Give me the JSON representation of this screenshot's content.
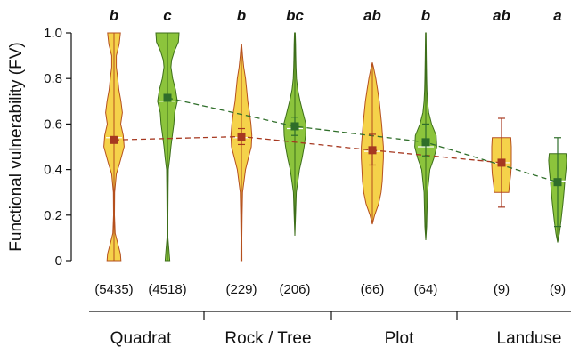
{
  "chart_data": {
    "type": "violin",
    "ylabel": "Functional vulnerability (FV)",
    "ylim": [
      0,
      1
    ],
    "yticks": [
      "0",
      "0.2",
      "0.4",
      "0.6",
      "0.8",
      "1.0"
    ],
    "colors": {
      "yellow_fill": "#f5d24a",
      "yellow_stroke": "#b5501e",
      "green_fill": "#8cc43c",
      "green_stroke": "#3d6e1a",
      "red_marker": "#a63820",
      "green_marker": "#2f6e2a"
    },
    "groups": [
      {
        "label": "Quadrat"
      },
      {
        "label": "Rock / Tree"
      },
      {
        "label": "Plot"
      },
      {
        "label": "Landuse"
      }
    ],
    "violins": [
      {
        "group": 0,
        "color": "yellow",
        "letter": "b",
        "n": "(5435)",
        "mean": 0.53,
        "ci": [
          0.52,
          0.54
        ],
        "min": 0.0,
        "max": 1.0,
        "median": 0.54,
        "profile": [
          [
            0.0,
            0.6
          ],
          [
            0.03,
            0.55
          ],
          [
            0.07,
            0.35
          ],
          [
            0.12,
            0.1
          ],
          [
            0.2,
            0.04
          ],
          [
            0.3,
            0.05
          ],
          [
            0.38,
            0.2
          ],
          [
            0.43,
            0.5
          ],
          [
            0.5,
            0.88
          ],
          [
            0.55,
            0.8
          ],
          [
            0.6,
            0.58
          ],
          [
            0.65,
            0.72
          ],
          [
            0.7,
            0.6
          ],
          [
            0.75,
            0.42
          ],
          [
            0.8,
            0.32
          ],
          [
            0.85,
            0.2
          ],
          [
            0.9,
            0.2
          ],
          [
            0.95,
            0.45
          ],
          [
            1.0,
            0.55
          ]
        ]
      },
      {
        "group": 0,
        "color": "green",
        "letter": "c",
        "n": "(4518)",
        "mean": 0.715,
        "ci": [
          0.705,
          0.725
        ],
        "min": 0.0,
        "max": 1.0,
        "median": 0.7,
        "profile": [
          [
            0.0,
            0.2
          ],
          [
            0.05,
            0.12
          ],
          [
            0.1,
            0.04
          ],
          [
            0.2,
            0.04
          ],
          [
            0.3,
            0.05
          ],
          [
            0.4,
            0.08
          ],
          [
            0.45,
            0.2
          ],
          [
            0.5,
            0.3
          ],
          [
            0.55,
            0.42
          ],
          [
            0.6,
            0.55
          ],
          [
            0.65,
            0.62
          ],
          [
            0.7,
            0.85
          ],
          [
            0.75,
            0.7
          ],
          [
            0.8,
            0.45
          ],
          [
            0.85,
            0.3
          ],
          [
            0.88,
            0.35
          ],
          [
            0.92,
            0.6
          ],
          [
            0.96,
            0.95
          ],
          [
            1.0,
            1.0
          ]
        ]
      },
      {
        "group": 1,
        "color": "yellow",
        "letter": "b",
        "n": "(229)",
        "mean": 0.545,
        "ci": [
          0.51,
          0.58
        ],
        "min": 0.0,
        "max": 0.95,
        "median": 0.54,
        "profile": [
          [
            0.0,
            0.05
          ],
          [
            0.1,
            0.04
          ],
          [
            0.2,
            0.06
          ],
          [
            0.3,
            0.1
          ],
          [
            0.4,
            0.35
          ],
          [
            0.45,
            0.6
          ],
          [
            0.5,
            0.85
          ],
          [
            0.55,
            0.9
          ],
          [
            0.6,
            0.82
          ],
          [
            0.65,
            0.7
          ],
          [
            0.7,
            0.55
          ],
          [
            0.75,
            0.45
          ],
          [
            0.8,
            0.35
          ],
          [
            0.85,
            0.2
          ],
          [
            0.9,
            0.1
          ],
          [
            0.95,
            0.02
          ]
        ]
      },
      {
        "group": 1,
        "color": "green",
        "letter": "bc",
        "n": "(206)",
        "mean": 0.59,
        "ci": [
          0.55,
          0.63
        ],
        "min": 0.11,
        "max": 1.0,
        "median": 0.58,
        "profile": [
          [
            0.11,
            0.0
          ],
          [
            0.2,
            0.06
          ],
          [
            0.3,
            0.12
          ],
          [
            0.4,
            0.4
          ],
          [
            0.45,
            0.62
          ],
          [
            0.5,
            0.8
          ],
          [
            0.55,
            0.92
          ],
          [
            0.6,
            0.95
          ],
          [
            0.65,
            0.7
          ],
          [
            0.7,
            0.45
          ],
          [
            0.75,
            0.25
          ],
          [
            0.8,
            0.14
          ],
          [
            0.85,
            0.1
          ],
          [
            0.9,
            0.08
          ],
          [
            0.95,
            0.06
          ],
          [
            1.0,
            0.03
          ]
        ]
      },
      {
        "group": 2,
        "color": "yellow",
        "letter": "ab",
        "n": "(66)",
        "mean": 0.485,
        "ci": [
          0.42,
          0.555
        ],
        "min": 0.16,
        "max": 0.87,
        "median": 0.48,
        "profile": [
          [
            0.16,
            0.0
          ],
          [
            0.2,
            0.2
          ],
          [
            0.25,
            0.55
          ],
          [
            0.3,
            0.75
          ],
          [
            0.35,
            0.85
          ],
          [
            0.4,
            0.9
          ],
          [
            0.45,
            0.95
          ],
          [
            0.5,
            0.95
          ],
          [
            0.55,
            0.88
          ],
          [
            0.6,
            0.8
          ],
          [
            0.65,
            0.7
          ],
          [
            0.7,
            0.6
          ],
          [
            0.75,
            0.45
          ],
          [
            0.8,
            0.3
          ],
          [
            0.85,
            0.1
          ],
          [
            0.87,
            0.0
          ]
        ]
      },
      {
        "group": 2,
        "color": "green",
        "letter": "b",
        "n": "(64)",
        "mean": 0.52,
        "ci": [
          0.46,
          0.6
        ],
        "min": 0.09,
        "max": 1.0,
        "median": 0.5,
        "profile": [
          [
            0.09,
            0.0
          ],
          [
            0.15,
            0.08
          ],
          [
            0.2,
            0.1
          ],
          [
            0.3,
            0.15
          ],
          [
            0.4,
            0.35
          ],
          [
            0.45,
            0.7
          ],
          [
            0.5,
            0.95
          ],
          [
            0.55,
            0.9
          ],
          [
            0.6,
            0.5
          ],
          [
            0.65,
            0.25
          ],
          [
            0.7,
            0.15
          ],
          [
            0.75,
            0.1
          ],
          [
            0.8,
            0.08
          ],
          [
            0.9,
            0.05
          ],
          [
            1.0,
            0.02
          ]
        ]
      },
      {
        "group": 3,
        "color": "yellow",
        "letter": "ab",
        "n": "(9)",
        "mean": 0.43,
        "ci": [
          0.235,
          0.625
        ],
        "min": 0.3,
        "max": 0.54,
        "median": 0.43,
        "profile": [
          [
            0.3,
            0.62
          ],
          [
            0.33,
            0.68
          ],
          [
            0.38,
            0.8
          ],
          [
            0.42,
            0.85
          ],
          [
            0.45,
            0.85
          ],
          [
            0.5,
            0.85
          ],
          [
            0.52,
            0.82
          ],
          [
            0.54,
            0.8
          ]
        ]
      },
      {
        "group": 3,
        "color": "green",
        "letter": "a",
        "n": "(9)",
        "mean": 0.345,
        "ci": [
          0.15,
          0.54
        ],
        "min": 0.08,
        "max": 0.47,
        "median": 0.35,
        "profile": [
          [
            0.08,
            0.0
          ],
          [
            0.12,
            0.15
          ],
          [
            0.18,
            0.3
          ],
          [
            0.25,
            0.45
          ],
          [
            0.3,
            0.55
          ],
          [
            0.35,
            0.62
          ],
          [
            0.4,
            0.72
          ],
          [
            0.44,
            0.78
          ],
          [
            0.47,
            0.72
          ]
        ]
      }
    ],
    "trend_lines": [
      {
        "color": "yellow",
        "points": [
          0.53,
          0.545,
          0.485,
          0.43
        ]
      },
      {
        "color": "green",
        "points": [
          0.715,
          0.59,
          0.52,
          0.345
        ]
      }
    ]
  }
}
